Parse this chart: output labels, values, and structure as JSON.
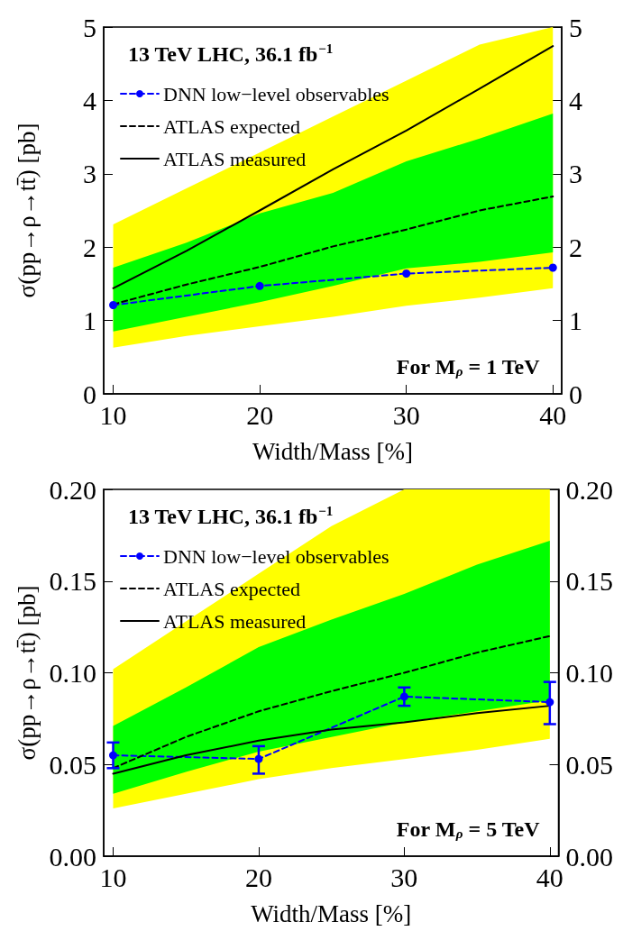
{
  "chart_data": [
    {
      "type": "line",
      "xlabel": "Width/Mass [%]",
      "ylabel": "σ(pp→ρ→tt̄) [pb]",
      "annotations": [
        "13 TeV LHC, 36.1 fb$^{−1}$",
        "For M$_{ρ}$ = 1 TeV"
      ],
      "xlim": [
        9.35,
        40.6
      ],
      "xticks": [
        10,
        20,
        30,
        40
      ],
      "ylim": [
        0,
        5
      ],
      "yticks": [
        0,
        1,
        2,
        3,
        4,
        5
      ],
      "y2lim": [
        0,
        5
      ],
      "y2ticks": [
        0,
        1,
        2,
        3,
        4,
        5
      ],
      "grid": false,
      "legend": "top left",
      "x": [
        10,
        15,
        20,
        25,
        30,
        35,
        40
      ],
      "series": [
        {
          "type": "line",
          "color": "#ffff00",
          "values": [
            null,
            null,
            null,
            null,
            null,
            null,
            null
          ],
          "lower": [
            0.63,
            0.79,
            0.92,
            1.05,
            1.2,
            1.31,
            1.44
          ],
          "upper": [
            2.31,
            2.8,
            3.29,
            3.78,
            4.27,
            4.76,
            5.0
          ]
        },
        {
          "type": "line",
          "color": "#00ff00",
          "values": [
            null,
            null,
            null,
            null,
            null,
            null,
            null
          ],
          "lower": [
            0.85,
            1.05,
            1.25,
            1.47,
            1.71,
            1.8,
            1.93
          ],
          "upper": [
            1.72,
            2.06,
            2.46,
            2.74,
            3.17,
            3.48,
            3.82
          ]
        },
        {
          "type": "line",
          "name": "DNN low−level observables",
          "color": "#0000ff",
          "x": [
            10,
            20,
            30,
            40
          ],
          "values": [
            1.21,
            1.47,
            1.64,
            1.72
          ],
          "marker": "circle",
          "line_style": "dashed"
        },
        {
          "type": "line",
          "name": "ATLAS expected",
          "color": "#000000",
          "values": [
            1.22,
            1.49,
            1.73,
            2.01,
            2.24,
            2.5,
            2.69
          ],
          "line_style": "dashed"
        },
        {
          "type": "line",
          "name": "ATLAS measured",
          "color": "#000000",
          "values": [
            1.44,
            1.95,
            2.5,
            3.06,
            3.59,
            4.16,
            4.74
          ],
          "line_style": "solid"
        }
      ]
    },
    {
      "type": "line",
      "xlabel": "Width/Mass [%]",
      "ylabel": "σ(pp→ρ→tt̄) [pb]",
      "annotations": [
        "13 TeV LHC, 36.1 fb$^{−1}$",
        "For M$_{ρ}$ = 5 TeV"
      ],
      "xlim": [
        9.35,
        40.6
      ],
      "xticks": [
        10,
        20,
        30,
        40
      ],
      "ylim": [
        0,
        0.2
      ],
      "yticks": [
        {
          "value": 0,
          "label": "0.00"
        },
        0.05,
        {
          "value": 0.1,
          "label": "0.10"
        },
        0.15,
        {
          "value": 0.2,
          "label": "0.20"
        }
      ],
      "y2lim": [
        0,
        0.2
      ],
      "y2ticks": [
        {
          "value": 0,
          "label": "0.00"
        },
        0.05,
        {
          "value": 0.1,
          "label": "0.10"
        },
        0.15,
        {
          "value": 0.2,
          "label": "0.20"
        }
      ],
      "grid": false,
      "legend": "top left",
      "x": [
        10,
        15,
        20,
        25,
        30,
        35,
        40
      ],
      "series": [
        {
          "type": "line",
          "color": "#ffff00",
          "values": [
            null,
            null,
            null,
            null,
            null,
            null,
            null
          ],
          "lower": [
            0.026,
            0.034,
            0.042,
            0.048,
            0.053,
            0.058,
            0.064
          ],
          "upper": [
            0.102,
            0.128,
            0.154,
            0.18,
            0.2,
            0.2,
            0.2
          ]
        },
        {
          "type": "line",
          "color": "#00ff00",
          "values": [
            null,
            null,
            null,
            null,
            null,
            null,
            null
          ],
          "lower": [
            0.034,
            0.046,
            0.057,
            0.065,
            0.073,
            0.079,
            0.085
          ],
          "upper": [
            0.071,
            0.092,
            0.114,
            0.129,
            0.143,
            0.159,
            0.172
          ]
        },
        {
          "type": "line",
          "name": "DNN low−level observables",
          "color": "#0000ff",
          "x": [
            10,
            20,
            30,
            40
          ],
          "values": [
            0.055,
            0.053,
            0.087,
            0.084
          ],
          "errors": [
            [
              0.048,
              0.062
            ],
            [
              0.045,
              0.06
            ],
            [
              0.082,
              0.092
            ],
            [
              0.072,
              0.095
            ]
          ],
          "marker": "circle",
          "line_style": "dashed"
        },
        {
          "type": "line",
          "name": "ATLAS expected",
          "color": "#000000",
          "values": [
            0.048,
            0.065,
            0.079,
            0.09,
            0.1,
            0.111,
            0.12
          ],
          "line_style": "dashed"
        },
        {
          "type": "line",
          "name": "ATLAS measured",
          "color": "#000000",
          "values": [
            0.045,
            0.055,
            0.063,
            0.069,
            0.073,
            0.078,
            0.082
          ],
          "line_style": "solid"
        }
      ]
    }
  ]
}
